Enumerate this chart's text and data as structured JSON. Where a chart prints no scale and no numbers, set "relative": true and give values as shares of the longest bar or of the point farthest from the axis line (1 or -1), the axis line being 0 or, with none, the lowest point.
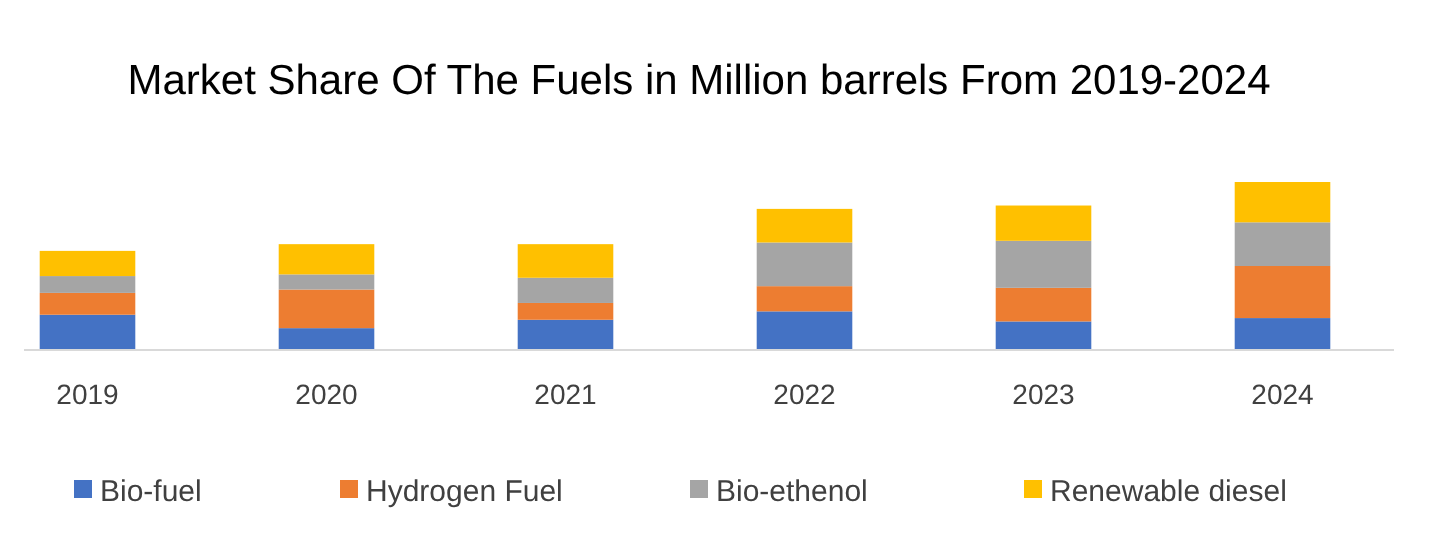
{
  "chart_data": {
    "type": "bar",
    "title": "Market Share Of The Fuels in Million barrels From 2019-2024",
    "categories": [
      "2019",
      "2020",
      "2021",
      "2022",
      "2023",
      "2024"
    ],
    "stacked": true,
    "relative": true,
    "legend": "bottom",
    "series": [
      {
        "name": "Bio-fuel",
        "color": "#4472c4",
        "values": [
          0.21,
          0.13,
          0.18,
          0.23,
          0.17,
          0.19
        ]
      },
      {
        "name": "Hydrogen Fuel",
        "color": "#ed7d31",
        "values": [
          0.13,
          0.23,
          0.1,
          0.15,
          0.2,
          0.31
        ]
      },
      {
        "name": "Bio-ethenol",
        "color": "#a5a5a5",
        "values": [
          0.1,
          0.09,
          0.15,
          0.26,
          0.28,
          0.26
        ]
      },
      {
        "name": "Renewable diesel",
        "color": "#ffc000",
        "values": [
          0.15,
          0.18,
          0.2,
          0.2,
          0.21,
          0.24
        ]
      }
    ]
  }
}
